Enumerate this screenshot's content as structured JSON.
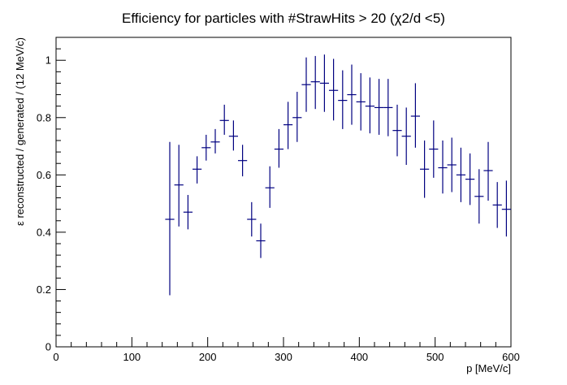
{
  "chart_data": {
    "type": "scatter",
    "title": "Efficiency for particles with #StrawHits > 20 (χ2/d <5)",
    "xlabel": "p [MeV/c]",
    "ylabel": "ε reconstructed / generated / (12 MeV/c)",
    "xlim": [
      0,
      600
    ],
    "ylim": [
      0,
      1.08
    ],
    "x_ticks": [
      0,
      100,
      200,
      300,
      400,
      500,
      600
    ],
    "y_ticks": [
      0,
      0.2,
      0.4,
      0.6,
      0.8,
      1
    ],
    "grid": false,
    "bin_width": 12,
    "marker_color": "#000080",
    "points": [
      {
        "x": 150,
        "y": 0.445,
        "ylo": 0.18,
        "yhi": 0.715
      },
      {
        "x": 162,
        "y": 0.565,
        "ylo": 0.42,
        "yhi": 0.705
      },
      {
        "x": 174,
        "y": 0.47,
        "ylo": 0.41,
        "yhi": 0.53
      },
      {
        "x": 186,
        "y": 0.62,
        "ylo": 0.57,
        "yhi": 0.665
      },
      {
        "x": 198,
        "y": 0.695,
        "ylo": 0.65,
        "yhi": 0.74
      },
      {
        "x": 210,
        "y": 0.715,
        "ylo": 0.675,
        "yhi": 0.76
      },
      {
        "x": 222,
        "y": 0.79,
        "ylo": 0.74,
        "yhi": 0.845
      },
      {
        "x": 234,
        "y": 0.735,
        "ylo": 0.685,
        "yhi": 0.79
      },
      {
        "x": 246,
        "y": 0.65,
        "ylo": 0.595,
        "yhi": 0.705
      },
      {
        "x": 258,
        "y": 0.445,
        "ylo": 0.385,
        "yhi": 0.505
      },
      {
        "x": 270,
        "y": 0.37,
        "ylo": 0.31,
        "yhi": 0.43
      },
      {
        "x": 282,
        "y": 0.555,
        "ylo": 0.485,
        "yhi": 0.63
      },
      {
        "x": 294,
        "y": 0.69,
        "ylo": 0.625,
        "yhi": 0.76
      },
      {
        "x": 306,
        "y": 0.775,
        "ylo": 0.69,
        "yhi": 0.855
      },
      {
        "x": 318,
        "y": 0.8,
        "ylo": 0.715,
        "yhi": 0.89
      },
      {
        "x": 330,
        "y": 0.915,
        "ylo": 0.82,
        "yhi": 1.01
      },
      {
        "x": 342,
        "y": 0.925,
        "ylo": 0.83,
        "yhi": 1.015
      },
      {
        "x": 354,
        "y": 0.92,
        "ylo": 0.82,
        "yhi": 1.02
      },
      {
        "x": 366,
        "y": 0.895,
        "ylo": 0.79,
        "yhi": 1.005
      },
      {
        "x": 378,
        "y": 0.86,
        "ylo": 0.76,
        "yhi": 0.965
      },
      {
        "x": 390,
        "y": 0.88,
        "ylo": 0.775,
        "yhi": 0.985
      },
      {
        "x": 402,
        "y": 0.855,
        "ylo": 0.755,
        "yhi": 0.955
      },
      {
        "x": 414,
        "y": 0.84,
        "ylo": 0.745,
        "yhi": 0.94
      },
      {
        "x": 426,
        "y": 0.835,
        "ylo": 0.74,
        "yhi": 0.935
      },
      {
        "x": 438,
        "y": 0.835,
        "ylo": 0.735,
        "yhi": 0.935
      },
      {
        "x": 450,
        "y": 0.755,
        "ylo": 0.665,
        "yhi": 0.845
      },
      {
        "x": 462,
        "y": 0.735,
        "ylo": 0.635,
        "yhi": 0.835
      },
      {
        "x": 474,
        "y": 0.805,
        "ylo": 0.695,
        "yhi": 0.92
      },
      {
        "x": 486,
        "y": 0.62,
        "ylo": 0.52,
        "yhi": 0.72
      },
      {
        "x": 498,
        "y": 0.69,
        "ylo": 0.59,
        "yhi": 0.79
      },
      {
        "x": 510,
        "y": 0.625,
        "ylo": 0.535,
        "yhi": 0.72
      },
      {
        "x": 522,
        "y": 0.635,
        "ylo": 0.54,
        "yhi": 0.73
      },
      {
        "x": 534,
        "y": 0.6,
        "ylo": 0.505,
        "yhi": 0.695
      },
      {
        "x": 546,
        "y": 0.585,
        "ylo": 0.495,
        "yhi": 0.675
      },
      {
        "x": 558,
        "y": 0.525,
        "ylo": 0.43,
        "yhi": 0.62
      },
      {
        "x": 570,
        "y": 0.615,
        "ylo": 0.51,
        "yhi": 0.715
      },
      {
        "x": 582,
        "y": 0.495,
        "ylo": 0.415,
        "yhi": 0.575
      },
      {
        "x": 594,
        "y": 0.48,
        "ylo": 0.385,
        "yhi": 0.58
      }
    ]
  }
}
